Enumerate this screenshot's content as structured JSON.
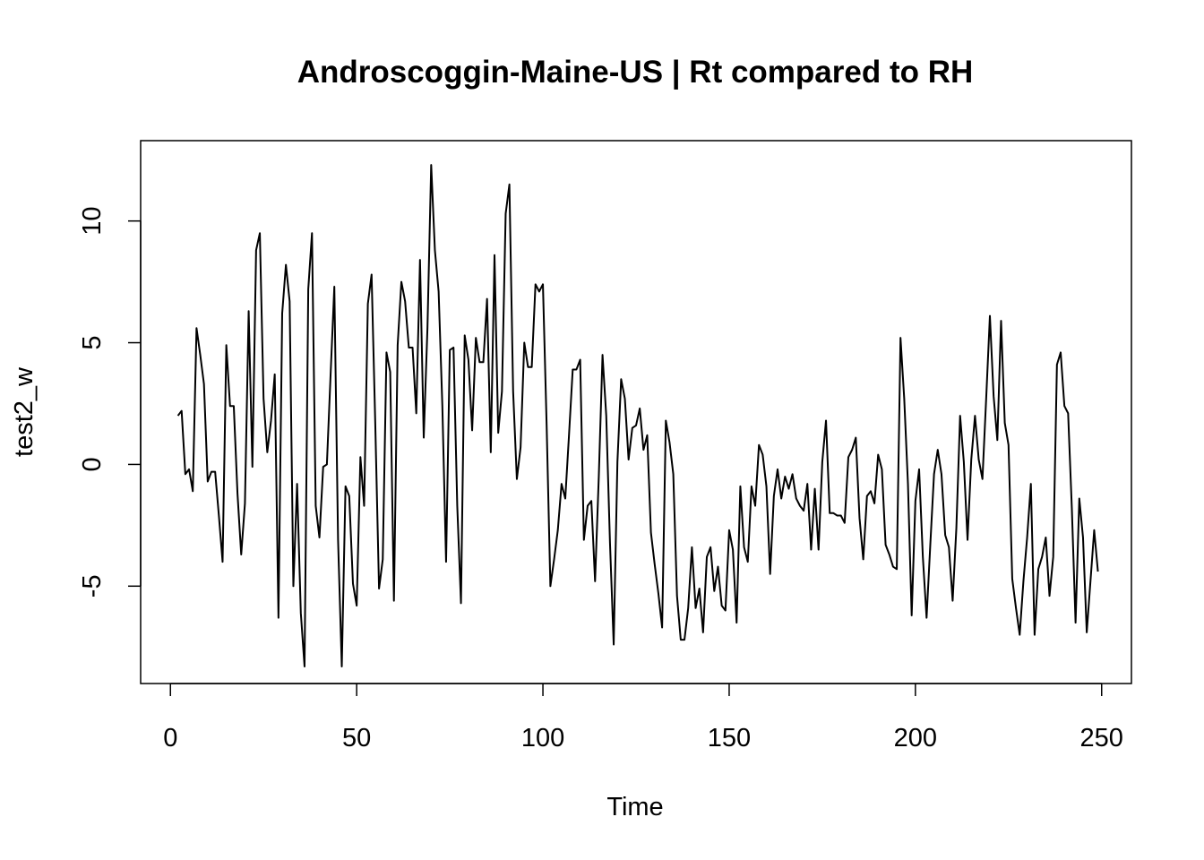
{
  "chart_data": {
    "type": "line",
    "title": "Androscoggin-Maine-US | Rt compared to RH",
    "xlabel": "Time",
    "ylabel": "test2_w",
    "xlim": [
      -8,
      258
    ],
    "ylim": [
      -9,
      13.3
    ],
    "x_ticks": [
      0,
      50,
      100,
      150,
      200,
      250
    ],
    "y_ticks": [
      -5,
      0,
      5,
      10
    ],
    "x_tick_labels": [
      "0",
      "50",
      "100",
      "150",
      "200",
      "250"
    ],
    "y_tick_labels": [
      "-5",
      "0",
      "5",
      "10"
    ],
    "grid": false,
    "legend": "none",
    "line_color": "#000000",
    "x_start": 2,
    "series": [
      {
        "values": [
          2.0,
          2.2,
          -0.4,
          -0.2,
          -1.1,
          5.6,
          4.5,
          3.3,
          -0.7,
          -0.3,
          -0.3,
          -2.1,
          -4.0,
          4.9,
          2.4,
          2.4,
          -1.2,
          -3.7,
          -1.6,
          6.3,
          -0.1,
          8.8,
          9.5,
          2.7,
          0.5,
          1.8,
          3.7,
          -6.3,
          6.2,
          8.2,
          6.7,
          -5.0,
          -0.8,
          -6.1,
          -8.3,
          7.2,
          9.5,
          -1.7,
          -3.0,
          -0.1,
          0.0,
          3.7,
          7.3,
          -3.1,
          -8.3,
          -0.9,
          -1.3,
          -4.9,
          -5.8,
          0.3,
          -1.7,
          6.6,
          7.8,
          1.6,
          -5.1,
          -3.9,
          4.6,
          3.8,
          -5.6,
          4.9,
          7.5,
          6.7,
          4.8,
          4.8,
          2.1,
          8.4,
          1.1,
          5.6,
          12.3,
          8.8,
          7.1,
          2.4,
          -4.0,
          4.7,
          4.8,
          -1.7,
          -5.7,
          5.3,
          4.3,
          1.4,
          5.2,
          4.2,
          4.2,
          6.8,
          0.5,
          8.6,
          1.3,
          3.0,
          10.3,
          11.5,
          3.0,
          -0.6,
          0.7,
          5.0,
          4.0,
          4.0,
          7.4,
          7.1,
          7.4,
          1.6,
          -5.0,
          -3.9,
          -2.7,
          -0.8,
          -1.4,
          1.2,
          3.9,
          3.9,
          4.3,
          -3.1,
          -1.7,
          -1.5,
          -4.8,
          -0.5,
          4.5,
          2.0,
          -3.2,
          -7.4,
          0.1,
          3.5,
          2.7,
          0.2,
          1.5,
          1.6,
          2.3,
          0.6,
          1.2,
          -2.8,
          -4.1,
          -5.3,
          -6.7,
          1.8,
          0.9,
          -0.4,
          -5.4,
          -7.2,
          -7.2,
          -5.9,
          -3.4,
          -5.9,
          -5.1,
          -6.9,
          -3.8,
          -3.4,
          -5.2,
          -4.2,
          -5.8,
          -6.0,
          -2.7,
          -3.5,
          -6.5,
          -0.9,
          -3.4,
          -4.0,
          -0.9,
          -1.7,
          0.8,
          0.4,
          -0.9,
          -4.5,
          -1.3,
          -0.2,
          -1.4,
          -0.5,
          -1.0,
          -0.4,
          -1.4,
          -1.7,
          -1.9,
          -0.8,
          -3.5,
          -1.0,
          -3.5,
          0.1,
          1.8,
          -2.0,
          -2.0,
          -2.1,
          -2.1,
          -2.4,
          0.3,
          0.6,
          1.1,
          -2.2,
          -3.9,
          -1.3,
          -1.1,
          -1.6,
          0.4,
          -0.2,
          -3.3,
          -3.7,
          -4.2,
          -4.3,
          5.2,
          2.7,
          -0.8,
          -6.2,
          -1.5,
          -0.2,
          -3.8,
          -6.3,
          -3.3,
          -0.4,
          0.6,
          -0.4,
          -2.9,
          -3.4,
          -5.6,
          -2.6,
          2.0,
          0.1,
          -3.1,
          0.2,
          2.0,
          0.2,
          -0.6,
          2.7,
          6.1,
          2.8,
          1.0,
          5.9,
          1.7,
          0.8,
          -4.7,
          -5.9,
          -7.0,
          -4.8,
          -3.0,
          -0.8,
          -7.0,
          -4.3,
          -3.8,
          -3.0,
          -5.4,
          -3.8,
          4.1,
          4.6,
          2.4,
          2.1,
          -1.8,
          -6.5,
          -1.4,
          -3.0,
          -6.9,
          -4.8,
          -2.7,
          -4.4
        ]
      }
    ]
  }
}
